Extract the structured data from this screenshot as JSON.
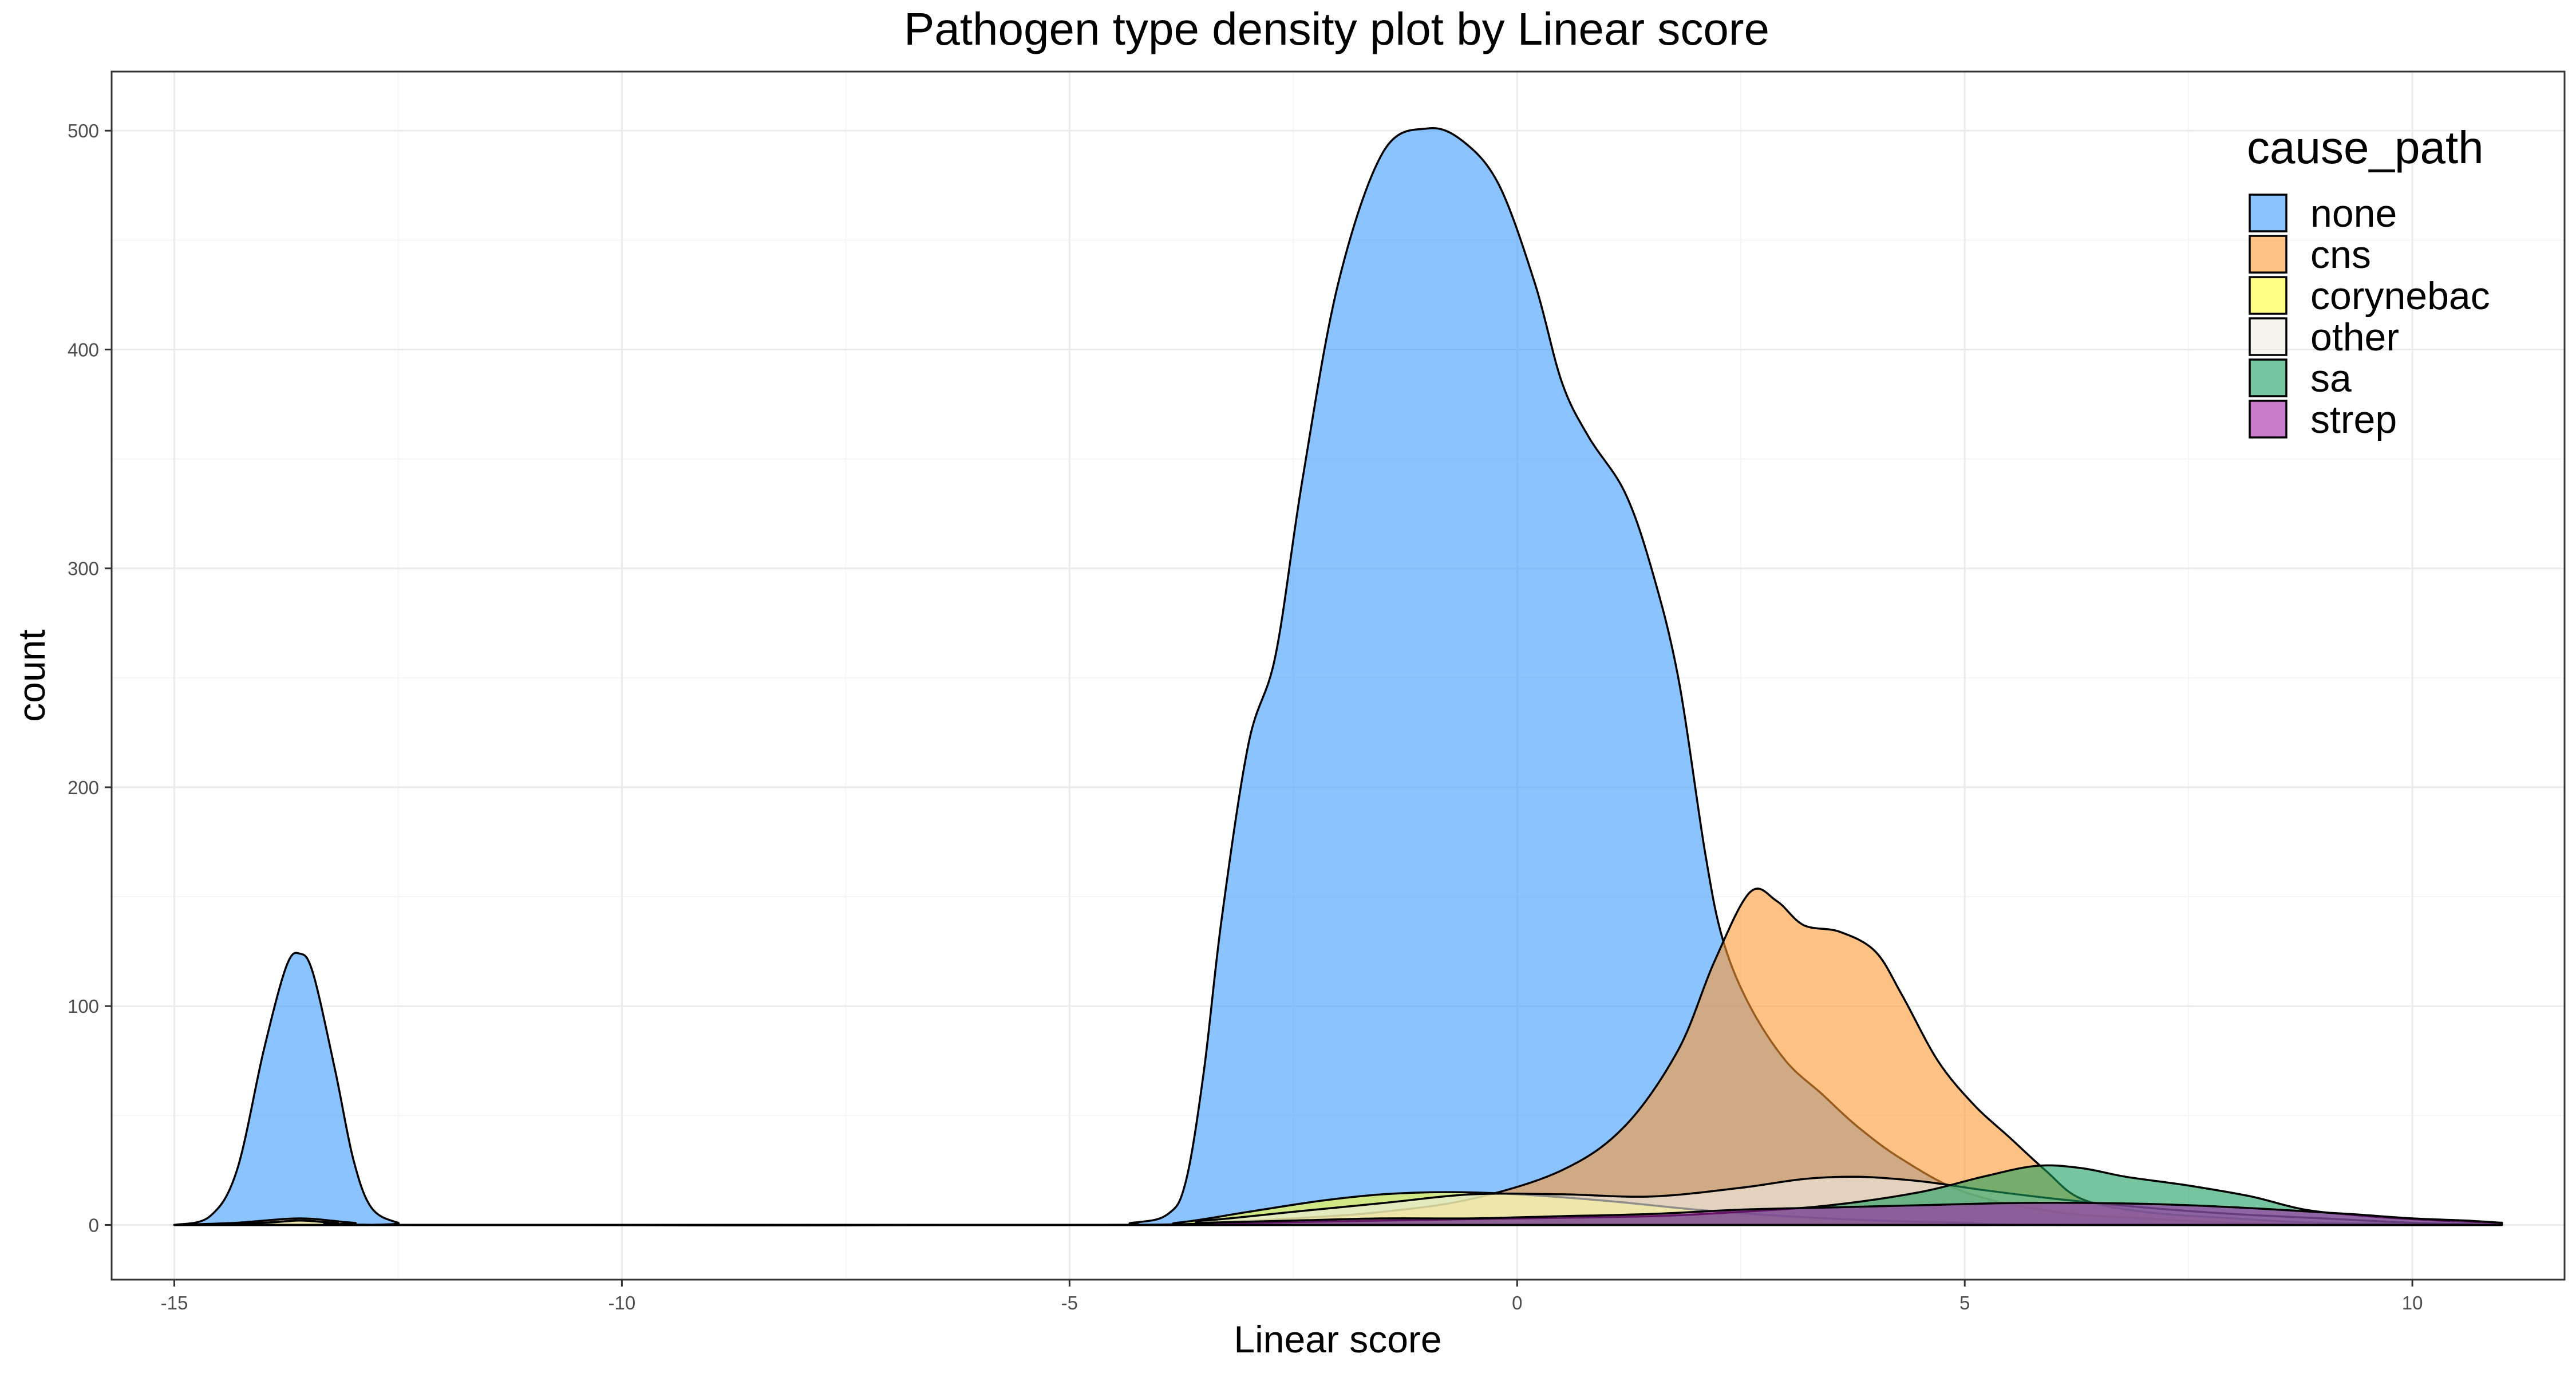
{
  "chart_data": {
    "type": "area",
    "title": "Pathogen type density plot by Linear score",
    "xlabel": "Linear score",
    "ylabel": "count",
    "xlim": [
      -15.7,
      11.7
    ],
    "ylim": [
      -25,
      527
    ],
    "x_ticks": [
      -15,
      -10,
      -5,
      0,
      5,
      10
    ],
    "x_tick_labels": [
      "-15",
      "-10",
      "-5",
      "0",
      "5",
      "10"
    ],
    "y_ticks": [
      0,
      100,
      200,
      300,
      400,
      500
    ],
    "y_tick_labels": [
      "0",
      "100",
      "200",
      "300",
      "400",
      "500"
    ],
    "grid": true,
    "legend": {
      "title": "cause_path",
      "position": "top-right"
    },
    "fill_opacity": 0.6,
    "series": [
      {
        "name": "none",
        "color": "#3E9BFE",
        "points": [
          [
            -15,
            0
          ],
          [
            -14.6,
            4
          ],
          [
            -14.3,
            25
          ],
          [
            -14.0,
            80
          ],
          [
            -13.75,
            118
          ],
          [
            -13.6,
            124
          ],
          [
            -13.45,
            115
          ],
          [
            -13.2,
            70
          ],
          [
            -13.0,
            30
          ],
          [
            -12.8,
            8
          ],
          [
            -12.5,
            1
          ],
          [
            -12.2,
            0
          ],
          [
            -5,
            0
          ],
          [
            -4.3,
            1
          ],
          [
            -3.9,
            5
          ],
          [
            -3.7,
            20
          ],
          [
            -3.5,
            70
          ],
          [
            -3.3,
            140
          ],
          [
            -3.0,
            220
          ],
          [
            -2.7,
            260
          ],
          [
            -2.4,
            340
          ],
          [
            -2.0,
            430
          ],
          [
            -1.5,
            490
          ],
          [
            -1.0,
            501
          ],
          [
            -0.6,
            495
          ],
          [
            -0.2,
            475
          ],
          [
            0.2,
            430
          ],
          [
            0.5,
            385
          ],
          [
            0.8,
            360
          ],
          [
            1.2,
            335
          ],
          [
            1.5,
            300
          ],
          [
            1.8,
            250
          ],
          [
            2.1,
            170
          ],
          [
            2.3,
            130
          ],
          [
            2.6,
            100
          ],
          [
            3.0,
            75
          ],
          [
            3.4,
            60
          ],
          [
            3.8,
            45
          ],
          [
            4.3,
            30
          ],
          [
            5.0,
            15
          ],
          [
            6.0,
            6
          ],
          [
            7.0,
            3
          ],
          [
            8.0,
            1
          ],
          [
            9.0,
            0
          ],
          [
            11,
            0
          ]
        ]
      },
      {
        "name": "cns",
        "color": "#FF9933",
        "points": [
          [
            -15,
            0
          ],
          [
            -14.3,
            1
          ],
          [
            -13.6,
            3
          ],
          [
            -13.0,
            1
          ],
          [
            -12.4,
            0
          ],
          [
            -4.5,
            0
          ],
          [
            -3.5,
            1
          ],
          [
            -2.5,
            3
          ],
          [
            -1.5,
            6
          ],
          [
            -0.5,
            12
          ],
          [
            0.5,
            25
          ],
          [
            1.2,
            45
          ],
          [
            1.8,
            80
          ],
          [
            2.2,
            120
          ],
          [
            2.6,
            152
          ],
          [
            2.9,
            148
          ],
          [
            3.2,
            137
          ],
          [
            3.6,
            134
          ],
          [
            4.0,
            125
          ],
          [
            4.3,
            105
          ],
          [
            4.7,
            75
          ],
          [
            5.1,
            55
          ],
          [
            5.5,
            40
          ],
          [
            5.9,
            25
          ],
          [
            6.3,
            12
          ],
          [
            7.0,
            6
          ],
          [
            8.0,
            3
          ],
          [
            9.0,
            1
          ],
          [
            11,
            0
          ]
        ]
      },
      {
        "name": "corynebac",
        "color": "#FFFF33",
        "points": [
          [
            -15,
            0
          ],
          [
            -14.0,
            1
          ],
          [
            -13.6,
            2
          ],
          [
            -13.2,
            1
          ],
          [
            -12.5,
            0
          ],
          [
            -4.5,
            0
          ],
          [
            -3.8,
            1
          ],
          [
            -3.0,
            6
          ],
          [
            -2.2,
            11
          ],
          [
            -1.5,
            14
          ],
          [
            -0.8,
            15
          ],
          [
            0,
            14
          ],
          [
            1.0,
            11
          ],
          [
            2.0,
            7
          ],
          [
            3.0,
            4
          ],
          [
            4.0,
            2
          ],
          [
            5.0,
            1
          ],
          [
            6.0,
            0
          ],
          [
            11,
            0
          ]
        ]
      },
      {
        "name": "other",
        "color": "#F0EDE5",
        "points": [
          [
            -15,
            0
          ],
          [
            -14.0,
            1
          ],
          [
            -13.6,
            2
          ],
          [
            -13.2,
            1
          ],
          [
            -12.5,
            0
          ],
          [
            -4.5,
            0
          ],
          [
            -3.5,
            2
          ],
          [
            -2.5,
            6
          ],
          [
            -1.5,
            10
          ],
          [
            -0.5,
            14
          ],
          [
            0.5,
            14
          ],
          [
            1.5,
            13
          ],
          [
            2.5,
            17
          ],
          [
            3.2,
            21
          ],
          [
            3.8,
            22
          ],
          [
            4.5,
            20
          ],
          [
            5.2,
            16
          ],
          [
            6.0,
            12
          ],
          [
            7.0,
            8
          ],
          [
            8.0,
            5
          ],
          [
            9.0,
            3
          ],
          [
            10.0,
            1
          ],
          [
            11,
            0
          ]
        ]
      },
      {
        "name": "sa",
        "color": "#1B9E5E",
        "points": [
          [
            -15,
            0
          ],
          [
            -4.5,
            0
          ],
          [
            -3.0,
            1
          ],
          [
            -1.5,
            2
          ],
          [
            0,
            3
          ],
          [
            1.5,
            4
          ],
          [
            2.5,
            6
          ],
          [
            3.5,
            9
          ],
          [
            4.5,
            15
          ],
          [
            5.2,
            22
          ],
          [
            5.8,
            27
          ],
          [
            6.3,
            26
          ],
          [
            6.8,
            22
          ],
          [
            7.5,
            18
          ],
          [
            8.2,
            13
          ],
          [
            8.8,
            7
          ],
          [
            9.5,
            4
          ],
          [
            10.3,
            2
          ],
          [
            11,
            1
          ]
        ]
      },
      {
        "name": "strep",
        "color": "#A224A8",
        "points": [
          [
            -15,
            0
          ],
          [
            -4.5,
            0
          ],
          [
            -3.5,
            1
          ],
          [
            -2.5,
            2
          ],
          [
            -1.5,
            3
          ],
          [
            -0.5,
            3
          ],
          [
            0.5,
            4
          ],
          [
            1.5,
            5
          ],
          [
            2.5,
            7
          ],
          [
            3.5,
            8
          ],
          [
            4.5,
            9
          ],
          [
            5.5,
            10
          ],
          [
            6.5,
            10
          ],
          [
            7.5,
            9
          ],
          [
            8.5,
            7
          ],
          [
            9.3,
            5
          ],
          [
            10.0,
            3
          ],
          [
            10.6,
            2
          ],
          [
            11,
            1
          ]
        ]
      }
    ]
  }
}
